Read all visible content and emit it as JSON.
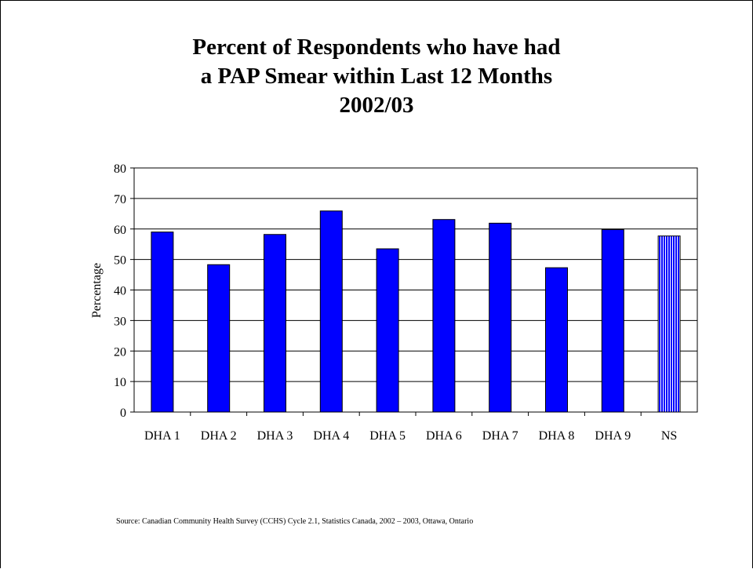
{
  "chart_data": {
    "type": "bar",
    "title_lines": [
      "Percent of Respondents who have had",
      "a PAP Smear within Last 12 Months",
      "2002/03"
    ],
    "xlabel": "",
    "ylabel": "Percentage",
    "ylim": [
      0,
      80
    ],
    "yticks": [
      0,
      10,
      20,
      30,
      40,
      50,
      60,
      70,
      80
    ],
    "categories": [
      "DHA 1",
      "DHA 2",
      "DHA 3",
      "DHA 4",
      "DHA 5",
      "DHA 6",
      "DHA 7",
      "DHA 8",
      "DHA 9",
      "NS"
    ],
    "values": [
      59,
      48.3,
      58.2,
      65.9,
      53.5,
      63.1,
      61.9,
      47.3,
      59.8,
      57.7
    ],
    "grid": true,
    "bar_color": "#0000ff",
    "highlight_category": "NS",
    "highlight_pattern": "vertical-stripes"
  },
  "source": "Source:  Canadian Community Health Survey (CCHS) Cycle 2.1, Statistics Canada, 2002 – 2003, Ottawa, Ontario"
}
